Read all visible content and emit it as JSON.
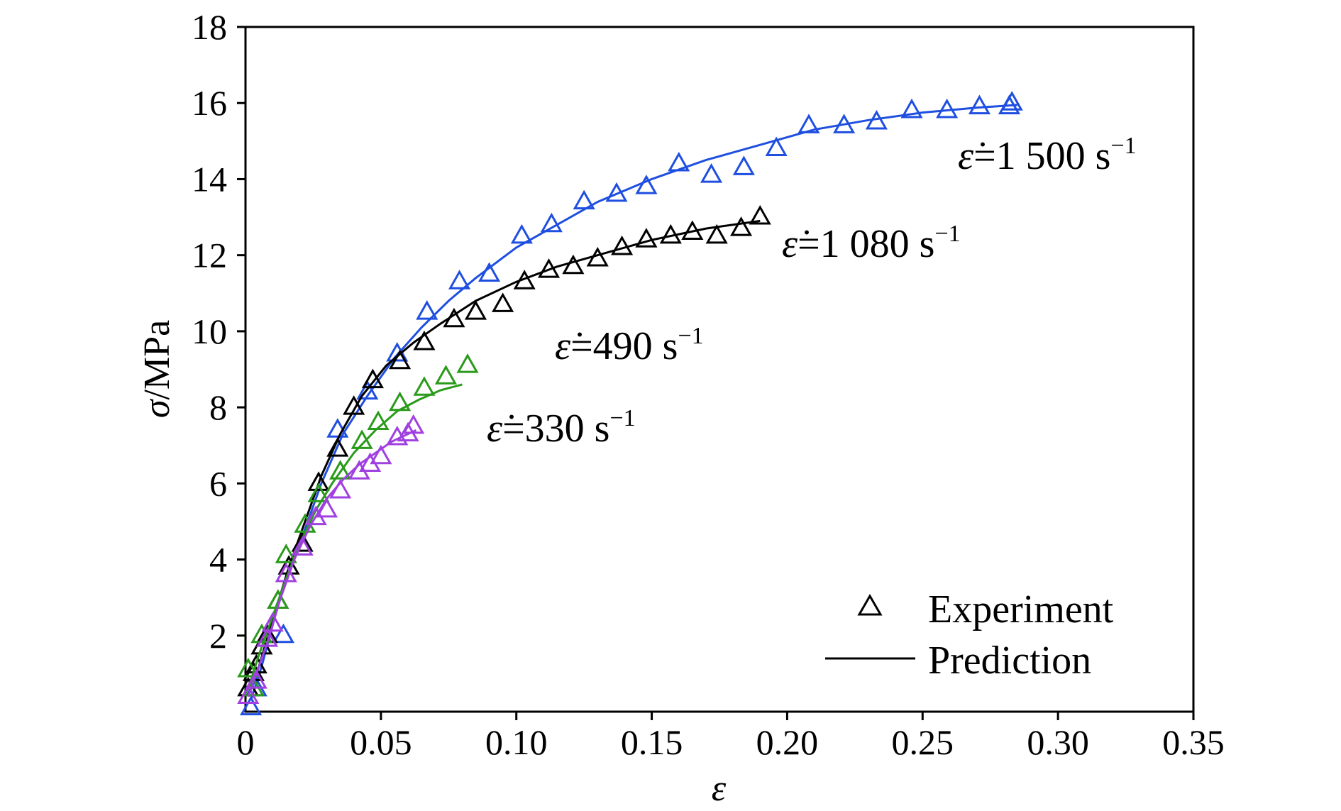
{
  "chart_data": {
    "type": "scatter",
    "xlabel": "ε",
    "ylabel_symbol": "σ",
    "ylabel_unit": "/MPa",
    "xlim": [
      0,
      0.35
    ],
    "ylim": [
      0,
      18
    ],
    "x_ticks": [
      0,
      0.05,
      0.1,
      0.15,
      0.2,
      0.25,
      0.3,
      0.35
    ],
    "x_tick_labels": [
      "0",
      "0.05",
      "0.10",
      "0.15",
      "0.20",
      "0.25",
      "0.30",
      "0.35"
    ],
    "y_ticks": [
      2,
      4,
      6,
      8,
      10,
      12,
      14,
      16,
      18
    ],
    "y_tick_labels": [
      "2",
      "4",
      "6",
      "8",
      "10",
      "12",
      "14",
      "16",
      "18"
    ],
    "grid": false,
    "legend_position": "bottom-right",
    "legend": [
      {
        "label": "Experiment",
        "marker": "triangle"
      },
      {
        "label": "Prediction",
        "marker": "line"
      }
    ],
    "annotations": [
      {
        "series": "1500",
        "prefix": "ε̇",
        "text": "=1 500 s",
        "sup": "−1"
      },
      {
        "series": "1080",
        "prefix": "ε̇",
        "text": "=1 080 s",
        "sup": "−1"
      },
      {
        "series": "490",
        "prefix": "ε̇",
        "text": "=490 s",
        "sup": "−1"
      },
      {
        "series": "330",
        "prefix": "ε̇",
        "text": "=330 s",
        "sup": "−1"
      }
    ],
    "series": [
      {
        "key": "1500",
        "color": "#1f4fe0",
        "experiment": [
          [
            0.002,
            0.1
          ],
          [
            0.004,
            0.6
          ],
          [
            0.014,
            2.0
          ],
          [
            0.034,
            7.4
          ],
          [
            0.045,
            8.4
          ],
          [
            0.056,
            9.4
          ],
          [
            0.067,
            10.5
          ],
          [
            0.079,
            11.3
          ],
          [
            0.09,
            11.5
          ],
          [
            0.102,
            12.5
          ],
          [
            0.113,
            12.8
          ],
          [
            0.125,
            13.4
          ],
          [
            0.137,
            13.6
          ],
          [
            0.148,
            13.8
          ],
          [
            0.16,
            14.4
          ],
          [
            0.172,
            14.1
          ],
          [
            0.184,
            14.3
          ],
          [
            0.196,
            14.8
          ],
          [
            0.208,
            15.4
          ],
          [
            0.221,
            15.4
          ],
          [
            0.233,
            15.5
          ],
          [
            0.246,
            15.8
          ],
          [
            0.259,
            15.8
          ],
          [
            0.271,
            15.9
          ],
          [
            0.282,
            15.9
          ],
          [
            0.283,
            16.0
          ]
        ],
        "prediction": [
          [
            0.002,
            0.3
          ],
          [
            0.006,
            1.2
          ],
          [
            0.012,
            2.8
          ],
          [
            0.02,
            4.4
          ],
          [
            0.028,
            6.0
          ],
          [
            0.036,
            7.3
          ],
          [
            0.045,
            8.3
          ],
          [
            0.055,
            9.3
          ],
          [
            0.065,
            10.1
          ],
          [
            0.075,
            10.8
          ],
          [
            0.085,
            11.4
          ],
          [
            0.1,
            12.2
          ],
          [
            0.115,
            12.8
          ],
          [
            0.13,
            13.4
          ],
          [
            0.15,
            14.0
          ],
          [
            0.17,
            14.5
          ],
          [
            0.19,
            14.9
          ],
          [
            0.21,
            15.3
          ],
          [
            0.23,
            15.55
          ],
          [
            0.25,
            15.75
          ],
          [
            0.27,
            15.88
          ],
          [
            0.285,
            15.95
          ]
        ]
      },
      {
        "key": "1080",
        "color": "#000000",
        "experiment": [
          [
            0.001,
            0.6
          ],
          [
            0.003,
            1.0
          ],
          [
            0.004,
            1.2
          ],
          [
            0.006,
            1.7
          ],
          [
            0.008,
            2.0
          ],
          [
            0.012,
            2.9
          ],
          [
            0.016,
            3.8
          ],
          [
            0.021,
            4.4
          ],
          [
            0.027,
            6.0
          ],
          [
            0.034,
            6.9
          ],
          [
            0.04,
            8.0
          ],
          [
            0.047,
            8.7
          ],
          [
            0.057,
            9.2
          ],
          [
            0.066,
            9.7
          ],
          [
            0.077,
            10.3
          ],
          [
            0.085,
            10.5
          ],
          [
            0.095,
            10.7
          ],
          [
            0.103,
            11.3
          ],
          [
            0.112,
            11.6
          ],
          [
            0.121,
            11.7
          ],
          [
            0.13,
            11.9
          ],
          [
            0.139,
            12.2
          ],
          [
            0.148,
            12.4
          ],
          [
            0.157,
            12.5
          ],
          [
            0.165,
            12.6
          ],
          [
            0.174,
            12.5
          ],
          [
            0.183,
            12.7
          ],
          [
            0.19,
            13.0
          ]
        ],
        "prediction": [
          [
            0.001,
            0.4
          ],
          [
            0.005,
            1.2
          ],
          [
            0.01,
            2.4
          ],
          [
            0.016,
            3.8
          ],
          [
            0.022,
            5.0
          ],
          [
            0.028,
            6.2
          ],
          [
            0.035,
            7.3
          ],
          [
            0.043,
            8.3
          ],
          [
            0.052,
            9.1
          ],
          [
            0.062,
            9.7
          ],
          [
            0.072,
            10.2
          ],
          [
            0.085,
            10.8
          ],
          [
            0.1,
            11.3
          ],
          [
            0.115,
            11.7
          ],
          [
            0.13,
            12.0
          ],
          [
            0.15,
            12.4
          ],
          [
            0.17,
            12.7
          ],
          [
            0.19,
            12.9
          ]
        ]
      },
      {
        "key": "490",
        "color": "#2a9a1a",
        "experiment": [
          [
            0.001,
            1.1
          ],
          [
            0.003,
            0.6
          ],
          [
            0.006,
            2.0
          ],
          [
            0.012,
            2.9
          ],
          [
            0.015,
            4.1
          ],
          [
            0.022,
            4.9
          ],
          [
            0.027,
            5.7
          ],
          [
            0.035,
            6.3
          ],
          [
            0.043,
            7.1
          ],
          [
            0.049,
            7.6
          ],
          [
            0.057,
            8.1
          ],
          [
            0.066,
            8.5
          ],
          [
            0.074,
            8.8
          ],
          [
            0.082,
            9.1
          ]
        ],
        "prediction": [
          [
            0.001,
            0.6
          ],
          [
            0.005,
            1.5
          ],
          [
            0.01,
            2.5
          ],
          [
            0.015,
            3.5
          ],
          [
            0.02,
            4.4
          ],
          [
            0.026,
            5.3
          ],
          [
            0.032,
            6.0
          ],
          [
            0.04,
            6.8
          ],
          [
            0.048,
            7.4
          ],
          [
            0.056,
            7.9
          ],
          [
            0.064,
            8.2
          ],
          [
            0.072,
            8.45
          ],
          [
            0.08,
            8.6
          ]
        ]
      },
      {
        "key": "330",
        "color": "#a040e0",
        "experiment": [
          [
            0.001,
            0.4
          ],
          [
            0.004,
            0.8
          ],
          [
            0.008,
            1.9
          ],
          [
            0.01,
            2.3
          ],
          [
            0.015,
            3.6
          ],
          [
            0.021,
            4.3
          ],
          [
            0.026,
            5.1
          ],
          [
            0.03,
            5.3
          ],
          [
            0.035,
            5.8
          ],
          [
            0.042,
            6.3
          ],
          [
            0.046,
            6.5
          ],
          [
            0.05,
            6.7
          ],
          [
            0.056,
            7.2
          ],
          [
            0.06,
            7.3
          ],
          [
            0.062,
            7.5
          ]
        ],
        "prediction": [
          [
            0.001,
            0.4
          ],
          [
            0.004,
            1.0
          ],
          [
            0.008,
            1.8
          ],
          [
            0.013,
            3.0
          ],
          [
            0.018,
            4.0
          ],
          [
            0.024,
            4.9
          ],
          [
            0.03,
            5.6
          ],
          [
            0.036,
            6.1
          ],
          [
            0.042,
            6.5
          ],
          [
            0.048,
            6.8
          ],
          [
            0.054,
            7.1
          ],
          [
            0.06,
            7.3
          ],
          [
            0.063,
            7.4
          ]
        ]
      }
    ]
  }
}
